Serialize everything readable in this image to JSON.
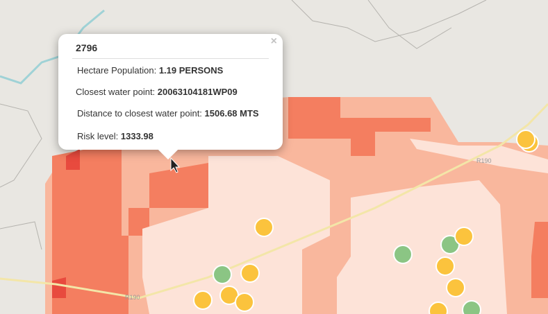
{
  "popup": {
    "title": "2796",
    "close": "×",
    "rows": [
      {
        "label": "Hectare Population:",
        "value": "1.19 PERSONS"
      },
      {
        "label": "Closest water point:",
        "value": "20063104181WP09"
      },
      {
        "label": "Distance to closest water point:",
        "value": "1506.68 MTS"
      },
      {
        "label": "Risk level:",
        "value": "1333.98"
      }
    ]
  },
  "road_labels": [
    "R190",
    "R190"
  ]
}
